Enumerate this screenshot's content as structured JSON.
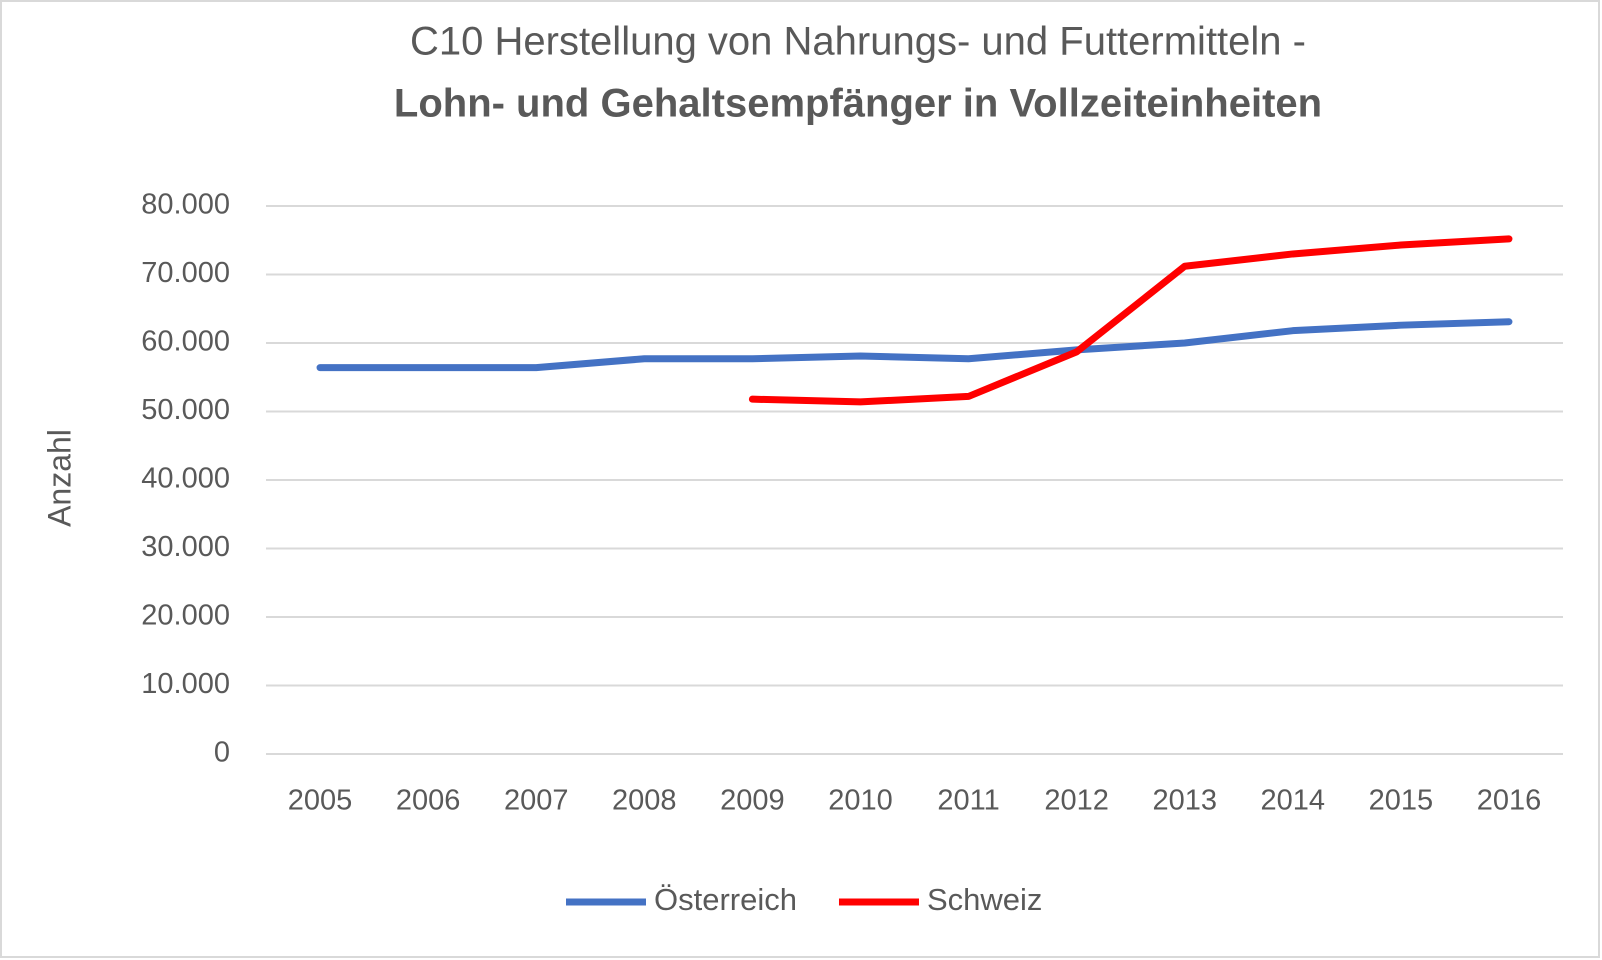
{
  "chart_data": {
    "type": "line",
    "title": "C10 Herstellung von Nahrungs- und Futtermitteln -",
    "subtitle": "Lohn- und Gehaltsempfänger in Vollzeiteinheiten",
    "y_label": "Anzahl",
    "categories": [
      "2005",
      "2006",
      "2007",
      "2008",
      "2009",
      "2010",
      "2011",
      "2012",
      "2013",
      "2014",
      "2015",
      "2016"
    ],
    "series": [
      {
        "name": "Österreich",
        "color": "#4472c4",
        "values": [
          56400,
          56400,
          56400,
          57700,
          57700,
          58100,
          57700,
          59000,
          60000,
          61800,
          62600,
          63100
        ]
      },
      {
        "name": "Schweiz",
        "color": "#ff0000",
        "values": [
          null,
          null,
          null,
          null,
          51800,
          51400,
          52200,
          58700,
          71200,
          73000,
          74300,
          75200
        ]
      }
    ],
    "ylim": [
      0,
      80000
    ],
    "yticks": [
      0,
      {
        "value": 10000,
        "label": "10.000"
      },
      {
        "value": 20000,
        "label": "20.000"
      },
      {
        "value": 30000,
        "label": "30.000"
      },
      {
        "value": 40000,
        "label": "40.000"
      },
      {
        "value": 50000,
        "label": "50.000"
      },
      {
        "value": 60000,
        "label": "60.000"
      },
      {
        "value": 70000,
        "label": "70.000"
      },
      {
        "value": 80000,
        "label": "80.000"
      }
    ],
    "grid": true,
    "legend": "bottom"
  }
}
